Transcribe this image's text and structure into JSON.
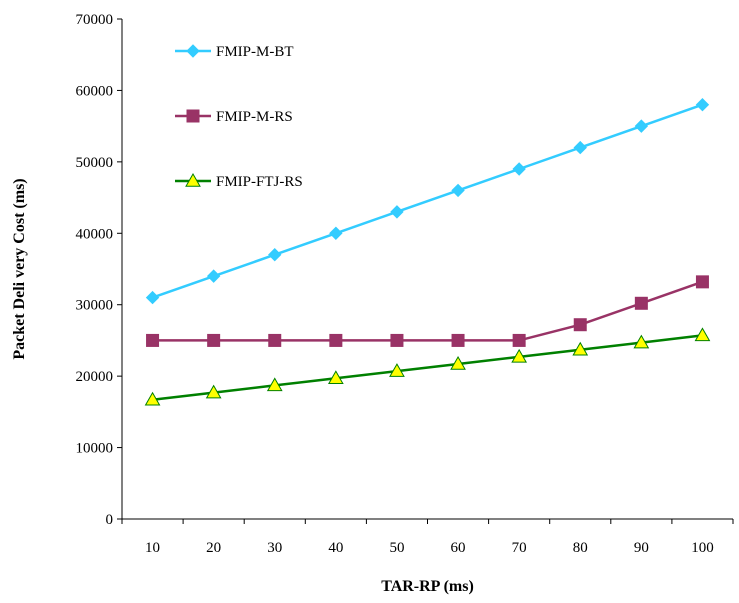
{
  "chart_data": {
    "type": "line",
    "title": "",
    "xlabel": "TAR-RP (ms)",
    "ylabel": "Packet Deli very Cost (ms)",
    "categories": [
      "10",
      "20",
      "30",
      "40",
      "50",
      "60",
      "70",
      "80",
      "90",
      "100"
    ],
    "ylim": [
      0,
      70000
    ],
    "yticks": [
      "0",
      "10000",
      "20000",
      "30000",
      "40000",
      "50000",
      "60000",
      "70000"
    ],
    "grid": false,
    "legend_position": "top-left",
    "series": [
      {
        "name": "FMIP-M-BT",
        "color": "#33ccff",
        "marker": "diamond",
        "values": [
          31000,
          34000,
          37000,
          40000,
          43000,
          46000,
          49000,
          52000,
          55000,
          58000
        ]
      },
      {
        "name": "FMIP-M-RS",
        "color": "#993366",
        "marker": "square",
        "values": [
          25000,
          25000,
          25000,
          25000,
          25000,
          25000,
          25000,
          27200,
          30200,
          33200
        ]
      },
      {
        "name": "FMIP-FTJ-RS",
        "color": "#008000",
        "marker_fill": "#ffff00",
        "marker": "triangle",
        "values": [
          16700,
          17700,
          18700,
          19700,
          20700,
          21700,
          22700,
          23700,
          24700,
          25700
        ]
      }
    ]
  }
}
